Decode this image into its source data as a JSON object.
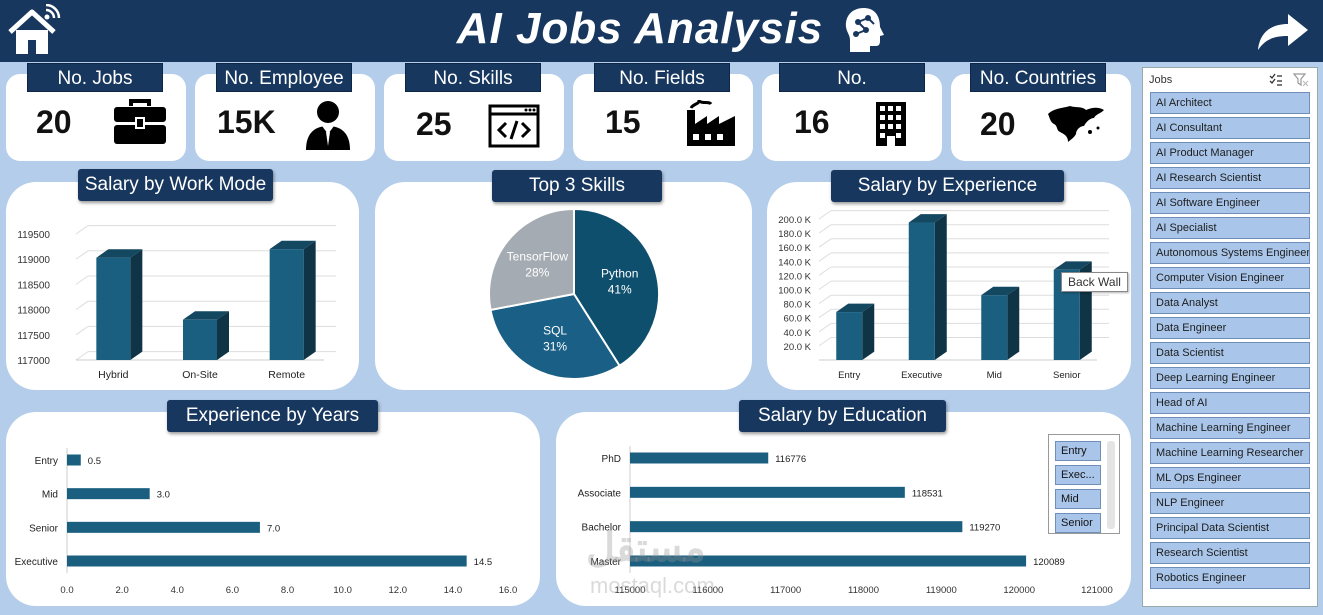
{
  "header": {
    "title": "AI Jobs Analysis"
  },
  "kpis": [
    {
      "label": "No. Jobs",
      "value": "20",
      "icon": "briefcase-icon"
    },
    {
      "label": "No. Employee",
      "value": "15K",
      "icon": "employee-icon"
    },
    {
      "label": "No. Skills",
      "value": "25",
      "icon": "code-window-icon"
    },
    {
      "label": "No. Fields",
      "value": "15",
      "icon": "factory-icon"
    },
    {
      "label": "No.",
      "value": "16",
      "icon": "building-icon"
    },
    {
      "label": "No. Countries",
      "value": "20",
      "icon": "world-map-icon"
    }
  ],
  "panels": {
    "work_mode": "Salary by Work Mode",
    "skills": "Top 3 Skills",
    "experience": "Salary by Experience",
    "years": "Experience by Years",
    "education": "Salary by Education"
  },
  "tooltip": "Back Wall",
  "watermark": {
    "arabic": "مستقل",
    "latin": "mostaql.com"
  },
  "slicer": {
    "title": "Jobs",
    "items": [
      "AI Architect",
      "AI Consultant",
      "AI Product Manager",
      "AI Research Scientist",
      "AI Software Engineer",
      "AI Specialist",
      "Autonomous Systems Engineer",
      "Computer Vision Engineer",
      "Data Analyst",
      "Data Engineer",
      "Data Scientist",
      "Deep Learning Engineer",
      "Head of AI",
      "Machine Learning Engineer",
      "Machine Learning Researcher",
      "ML Ops Engineer",
      "NLP Engineer",
      "Principal Data Scientist",
      "Research Scientist",
      "Robotics Engineer"
    ]
  },
  "mini_slicer": {
    "items": [
      "Entry",
      "Exec...",
      "Mid",
      "Senior"
    ]
  },
  "chart_data": [
    {
      "id": "work_mode",
      "type": "bar",
      "title": "Salary by Work Mode",
      "categories": [
        "Hybrid",
        "On-Site",
        "Remote"
      ],
      "values": [
        119030,
        117800,
        119200
      ],
      "ylim": [
        117000,
        119500
      ],
      "yticks": [
        117000,
        117500,
        118000,
        118500,
        119000,
        119500
      ],
      "tick_labels": [
        "117000",
        "117500",
        "118000",
        "118500",
        "119000",
        "119500"
      ],
      "color": "#1b5f80"
    },
    {
      "id": "skills",
      "type": "pie",
      "title": "Top 3 Skills",
      "slices": [
        {
          "name": "Python",
          "value": 41,
          "label": "41%",
          "color": "#0f4f6e"
        },
        {
          "name": "SQL",
          "value": 31,
          "label": "31%",
          "color": "#1a5f85"
        },
        {
          "name": "TensorFlow",
          "value": 28,
          "label": "28%",
          "color": "#a5abb2"
        }
      ]
    },
    {
      "id": "experience",
      "type": "bar",
      "title": "Salary by Experience",
      "categories": [
        "Entry",
        "Executive",
        "Mid",
        "Senior"
      ],
      "values": [
        68000,
        195000,
        92000,
        128000
      ],
      "ylim": [
        0,
        200000
      ],
      "yticks": [
        20000,
        40000,
        60000,
        80000,
        100000,
        120000,
        140000,
        160000,
        180000,
        200000
      ],
      "tick_labels": [
        "20.0 K",
        "40.0 K",
        "60.0 K",
        "80.0 K",
        "100.0 K",
        "120.0 K",
        "140.0 K",
        "160.0 K",
        "180.0 K",
        "200.0 K"
      ],
      "color": "#1b5f80"
    },
    {
      "id": "years",
      "type": "bar",
      "orientation": "horizontal",
      "title": "Experience by Years",
      "categories": [
        "Entry",
        "Mid",
        "Senior",
        "Executive"
      ],
      "values": [
        0.5,
        3.0,
        7.0,
        14.5
      ],
      "value_labels": [
        "0.5",
        "3.0",
        "7.0",
        "14.5"
      ],
      "xlim": [
        0,
        16
      ],
      "xticks": [
        0,
        2,
        4,
        6,
        8,
        10,
        12,
        14,
        16
      ],
      "tick_labels": [
        "0.0",
        "2.0",
        "4.0",
        "6.0",
        "8.0",
        "10.0",
        "12.0",
        "14.0",
        "16.0"
      ],
      "color": "#1b5f80"
    },
    {
      "id": "education",
      "type": "bar",
      "orientation": "horizontal",
      "title": "Salary by Education",
      "categories": [
        "PhD",
        "Associate",
        "Bachelor",
        "Master"
      ],
      "values": [
        116776,
        118531,
        119270,
        120089
      ],
      "value_labels": [
        "116776",
        "118531",
        "119270",
        "120089"
      ],
      "xlim": [
        115000,
        121000
      ],
      "xticks": [
        115000,
        116000,
        117000,
        118000,
        119000,
        120000,
        121000
      ],
      "tick_labels": [
        "115000",
        "116000",
        "117000",
        "118000",
        "119000",
        "120000",
        "121000"
      ],
      "color": "#1b5f80"
    }
  ]
}
